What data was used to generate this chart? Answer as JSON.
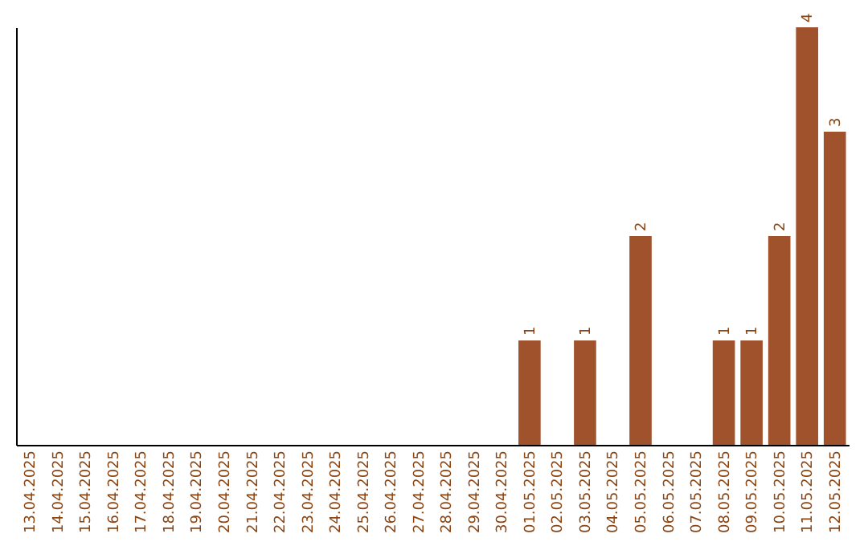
{
  "chart_data": {
    "type": "bar",
    "categories": [
      "13.04.2025",
      "14.04.2025",
      "15.04.2025",
      "16.04.2025",
      "17.04.2025",
      "18.04.2025",
      "19.04.2025",
      "20.04.2025",
      "21.04.2025",
      "22.04.2025",
      "23.04.2025",
      "24.04.2025",
      "25.04.2025",
      "26.04.2025",
      "27.04.2025",
      "28.04.2025",
      "29.04.2025",
      "30.04.2025",
      "01.05.2025",
      "02.05.2025",
      "03.05.2025",
      "04.05.2025",
      "05.05.2025",
      "06.05.2025",
      "07.05.2025",
      "08.05.2025",
      "09.05.2025",
      "10.05.2025",
      "11.05.2025",
      "12.05.2025"
    ],
    "values": [
      null,
      null,
      null,
      null,
      null,
      null,
      null,
      null,
      null,
      null,
      null,
      null,
      null,
      null,
      null,
      null,
      null,
      null,
      1,
      null,
      1,
      null,
      2,
      null,
      null,
      1,
      1,
      2,
      4,
      3
    ],
    "value_labels": [
      null,
      null,
      null,
      null,
      null,
      null,
      null,
      null,
      null,
      null,
      null,
      null,
      null,
      null,
      null,
      null,
      null,
      null,
      "1",
      null,
      "1",
      null,
      "2",
      null,
      null,
      "1",
      "1",
      "2",
      "4",
      "3"
    ],
    "color": "#a0522d"
  }
}
